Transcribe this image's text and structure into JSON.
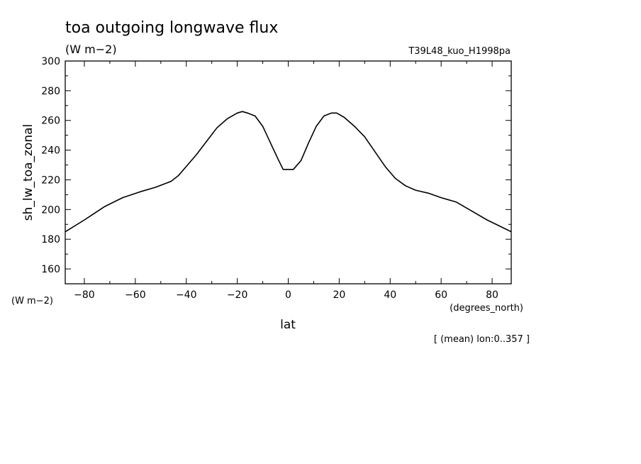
{
  "chart_data": {
    "type": "line",
    "title": "toa outgoing longwave flux",
    "title_units": "(W m−2)",
    "experiment": "T39L48_kuo_H1998pa",
    "ylabel": "sh_lw_toa_zonal",
    "ylabel_units": "(W m−2)",
    "xlabel": "lat",
    "xlabel_units": "(degrees_north)",
    "footnote": "[ (mean) lon:0..357 ]",
    "xlim": [
      -87.5,
      87.5
    ],
    "ylim": [
      150,
      300
    ],
    "xticks": [
      -80,
      -60,
      -40,
      -20,
      0,
      20,
      40,
      60,
      80
    ],
    "xtick_labels": [
      "−80",
      "−60",
      "−40",
      "−20",
      "0",
      "20",
      "40",
      "60",
      "80"
    ],
    "yticks": [
      160,
      180,
      200,
      220,
      240,
      260,
      280,
      300
    ],
    "ytick_labels": [
      "160",
      "180",
      "200",
      "220",
      "240",
      "260",
      "280",
      "300"
    ],
    "grid": false,
    "series": [
      {
        "x": [
          -87.5,
          -80,
          -72,
          -65,
          -58,
          -52,
          -46,
          -43,
          -40,
          -36,
          -32,
          -28,
          -24,
          -20,
          -18,
          -16,
          -13,
          -10,
          -7,
          -4,
          -2,
          0,
          2,
          5,
          8,
          11,
          14,
          17,
          19,
          22,
          26,
          30,
          34,
          38,
          42,
          46,
          50,
          55,
          60,
          66,
          72,
          78,
          84,
          87.5
        ],
        "y": [
          185,
          193,
          202,
          208,
          212,
          215,
          219,
          223,
          229,
          237,
          246,
          255,
          261,
          265,
          266,
          265,
          263,
          256,
          245,
          234,
          227,
          227,
          227,
          233,
          245,
          256,
          263,
          265,
          265,
          262,
          256,
          249,
          239,
          229,
          221,
          216,
          213,
          211,
          208,
          205,
          199,
          193,
          188,
          185
        ]
      }
    ]
  }
}
